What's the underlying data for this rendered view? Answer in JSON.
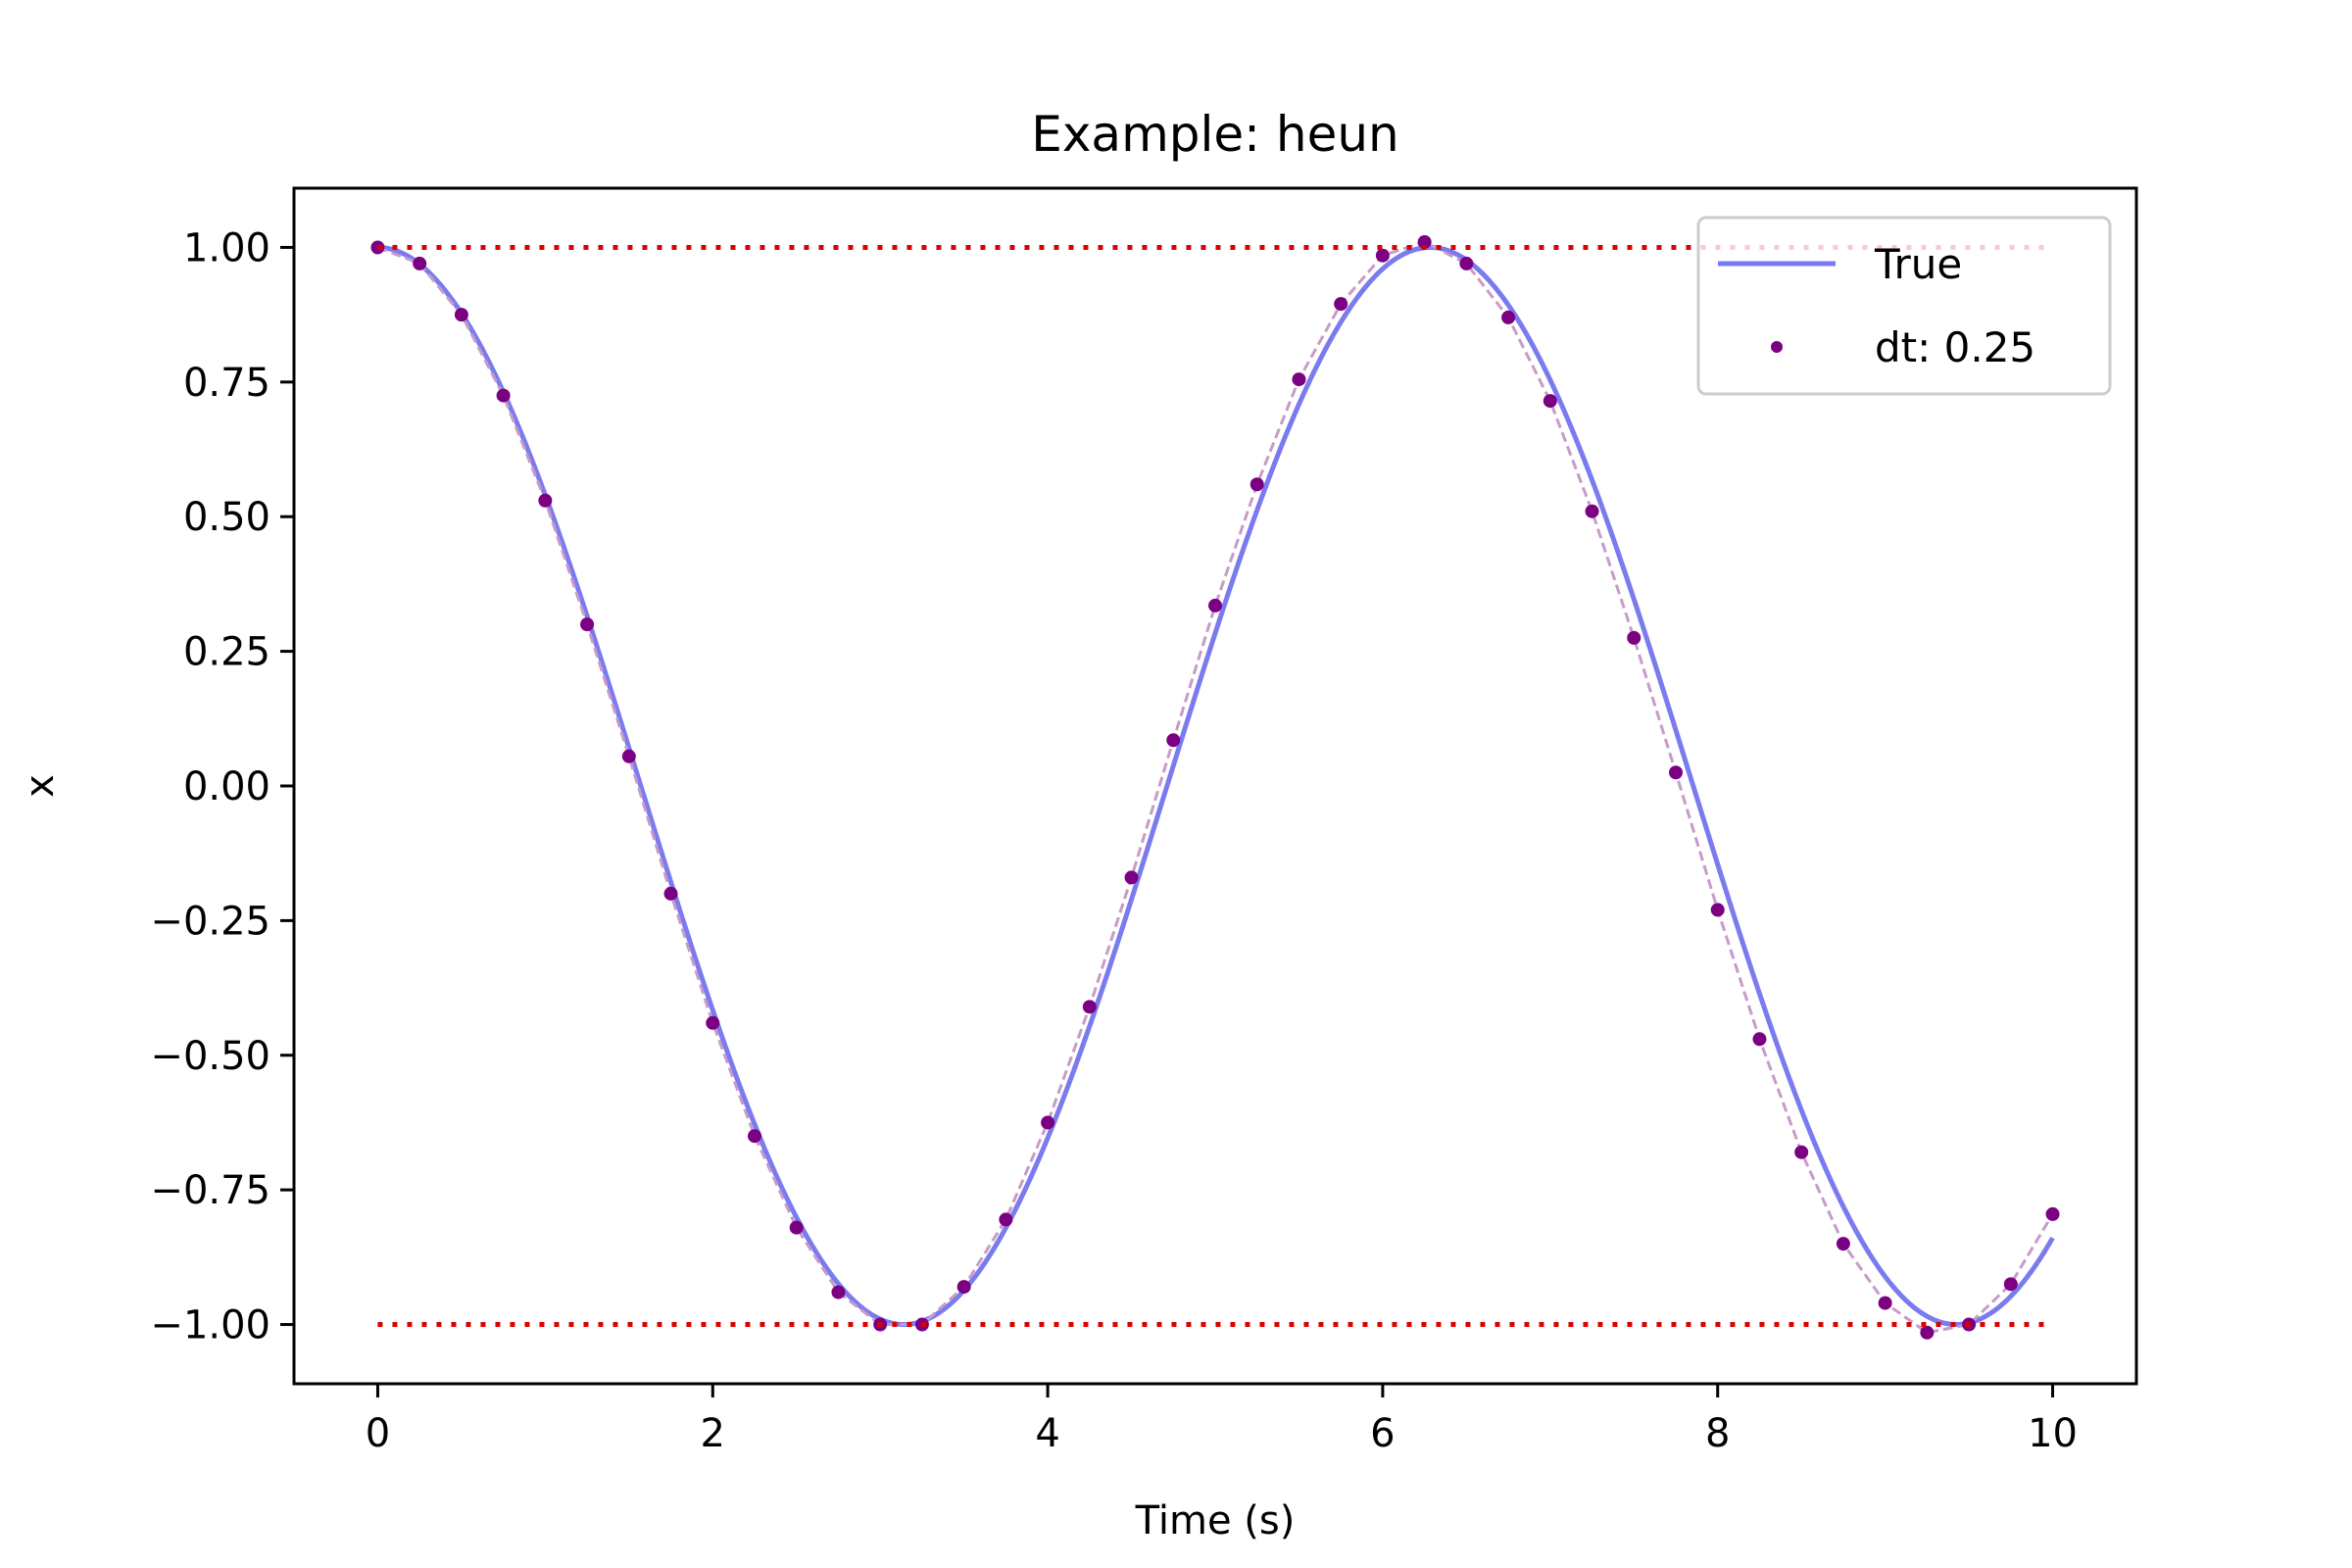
{
  "chart_data": {
    "type": "line",
    "title": "Example: heun",
    "xlabel": "Time (s)",
    "ylabel": "x",
    "xlim": [
      -0.5,
      10.5
    ],
    "ylim": [
      -1.11,
      1.11
    ],
    "xticks": [
      0,
      2,
      4,
      6,
      8,
      10
    ],
    "xtick_labels": [
      "0",
      "2",
      "4",
      "6",
      "8",
      "10"
    ],
    "yticks": [
      1.0,
      0.75,
      0.5,
      0.25,
      0.0,
      -0.25,
      -0.5,
      -0.75,
      -1.0
    ],
    "ytick_labels": [
      "1.00",
      "0.75",
      "0.50",
      "0.25",
      "0.00",
      "−0.25",
      "−0.50",
      "−0.75",
      "−1.00"
    ],
    "grid": false,
    "legend_position": "top-right",
    "legend": [
      {
        "label": "True",
        "kind": "line"
      },
      {
        "label": "dt: 0.25",
        "kind": "scatter"
      }
    ],
    "series": [
      {
        "name": "True",
        "kind": "line",
        "color": "#7b7bf0",
        "function": "cos(t)",
        "x_range": [
          0,
          10
        ]
      },
      {
        "name": "dt: 0.25",
        "kind": "scatter",
        "color": "#7b0082",
        "connector_color": "#c89bc8",
        "x": [
          0,
          0.25,
          0.5,
          0.75,
          1.0,
          1.25,
          1.5,
          1.75,
          2.0,
          2.25,
          2.5,
          2.75,
          3.0,
          3.25,
          3.5,
          3.75,
          4.0,
          4.25,
          4.5,
          4.75,
          5.0,
          5.25,
          5.5,
          5.75,
          6.0,
          6.25,
          6.5,
          6.75,
          7.0,
          7.25,
          7.5,
          7.75,
          8.0,
          8.25,
          8.5,
          8.75,
          9.0,
          9.25,
          9.5,
          9.75,
          10.0
        ],
        "y": [
          1.0,
          0.97,
          0.875,
          0.725,
          0.53,
          0.3,
          0.055,
          -0.2,
          -0.44,
          -0.65,
          -0.82,
          -0.94,
          -1.0,
          -1.0,
          -0.93,
          -0.805,
          -0.625,
          -0.41,
          -0.17,
          0.085,
          0.335,
          0.56,
          0.755,
          0.895,
          0.985,
          1.01,
          0.97,
          0.87,
          0.715,
          0.51,
          0.275,
          0.025,
          -0.23,
          -0.47,
          -0.68,
          -0.85,
          -0.96,
          -1.015,
          -1.0,
          -0.925,
          -0.795
        ]
      },
      {
        "name": "",
        "kind": "reference",
        "color": "#dd0000",
        "y_value": 1.0,
        "x_range": [
          0,
          10
        ]
      },
      {
        "name": "",
        "kind": "reference",
        "color": "#dd0000",
        "y_value": -1.0,
        "x_range": [
          0,
          10
        ]
      }
    ]
  }
}
